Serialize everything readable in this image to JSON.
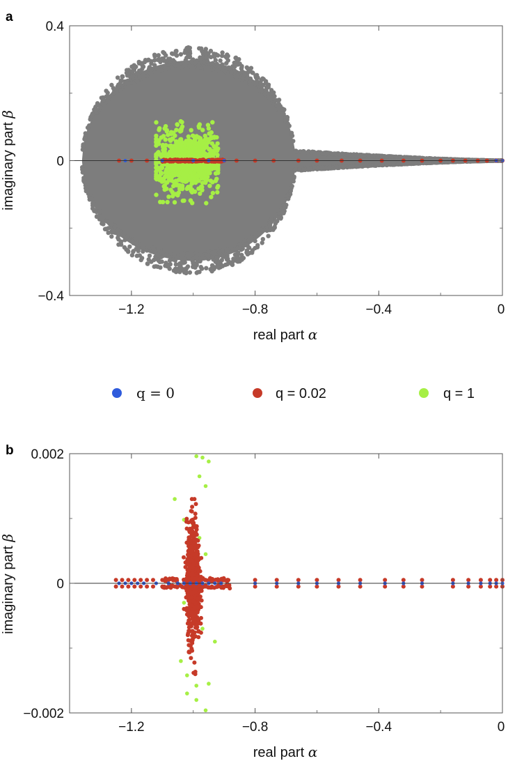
{
  "legend": [
    {
      "label": "q = 0",
      "color": "#2f5bdc"
    },
    {
      "label": "q = 0.02",
      "color": "#c63a28"
    },
    {
      "label": "q = 1",
      "color": "#a6ef45"
    }
  ],
  "background_color": "#7d7d7d",
  "chart_data": [
    {
      "type": "scatter",
      "panel": "a",
      "title": "",
      "xlabel": "real part",
      "xlabel_symbol": "α",
      "ylabel": "imaginary part",
      "ylabel_symbol": "β",
      "xlim": [
        -1.4,
        0
      ],
      "ylim": [
        -0.4,
        0.4
      ],
      "xticks": [
        -1.2,
        -0.8,
        -0.4,
        0
      ],
      "xtick_labels": [
        "−1.2",
        "−0.8",
        "−0.4",
        "0"
      ],
      "yticks": [
        0.4,
        0,
        -0.4
      ],
      "ytick_labels": [
        "0.4",
        "0",
        "−0.4"
      ],
      "grid": false,
      "zero_line": true,
      "series": [
        {
          "name": "background",
          "description": "dense cloud of eigenvalues",
          "cloud": {
            "x_min": -1.36,
            "x_center": -1.0,
            "x_max": 0,
            "beta_max_at_center": 0.32,
            "tail_beta_width": 0.05
          }
        },
        {
          "name": "q = 1",
          "cluster": {
            "x_min": -1.12,
            "x_max": -0.92,
            "beta_range": [
              -0.13,
              0.12
            ]
          }
        },
        {
          "name": "q = 0.02",
          "x": [
            -1.24,
            -1.2,
            -1.15,
            -1.1,
            -1.06,
            -1.02,
            -1.0,
            -0.98,
            -0.94,
            -0.9,
            -0.86,
            -0.8,
            -0.74,
            -0.66,
            -0.6,
            -0.52,
            -0.46,
            -0.39,
            -0.32,
            -0.26,
            -0.2,
            -0.16,
            -0.12,
            -0.08,
            -0.05,
            -0.02,
            0
          ],
          "y": [
            0,
            0,
            0,
            0,
            0,
            0,
            0,
            0,
            0,
            0,
            0,
            0,
            0,
            0,
            0,
            0,
            0,
            0,
            0,
            0,
            0,
            0,
            0,
            0,
            0,
            0,
            0
          ]
        },
        {
          "name": "q = 0",
          "x": [
            -1.22,
            -1.1,
            -1.0,
            -0.95,
            -0.9,
            -0.02,
            0
          ],
          "y": [
            0,
            0,
            0,
            0,
            0,
            0,
            0
          ]
        }
      ]
    },
    {
      "type": "scatter",
      "panel": "b",
      "title": "",
      "xlabel": "real part",
      "xlabel_symbol": "α",
      "ylabel": "imaginary part",
      "ylabel_symbol": "β",
      "xlim": [
        -1.4,
        0
      ],
      "ylim": [
        -0.002,
        0.002
      ],
      "xticks": [
        -1.2,
        -0.8,
        -0.4,
        0
      ],
      "xtick_labels": [
        "−1.2",
        "−0.8",
        "−0.4",
        "0"
      ],
      "yticks": [
        0.002,
        0,
        -0.002
      ],
      "ytick_labels": [
        "0.002",
        "0",
        "−0.002"
      ],
      "grid": false,
      "zero_line": true,
      "series": [
        {
          "name": "q = 0",
          "x": [
            -1.24,
            -1.22,
            -1.2,
            -1.18,
            -1.16,
            -1.12,
            -1.08,
            -1.05,
            -1.03,
            -1.01,
            -0.99,
            -0.97,
            -0.95,
            -0.93,
            -0.91,
            -0.8,
            -0.73,
            -0.66,
            -0.6,
            -0.53,
            -0.46,
            -0.38,
            -0.32,
            -0.26,
            -0.16,
            -0.11,
            -0.07,
            -0.04,
            -0.02,
            0
          ],
          "y": [
            0,
            0,
            0,
            0,
            0,
            0,
            0,
            0,
            0,
            0,
            0,
            0,
            0,
            0,
            0,
            0,
            0,
            0,
            0,
            0,
            0,
            0,
            0,
            0,
            0,
            0,
            0,
            0,
            0,
            0
          ]
        },
        {
          "name": "q = 0.02",
          "pairs_x": [
            -1.25,
            -1.23,
            -1.21,
            -1.19,
            -1.17,
            -1.15,
            -1.13,
            -1.1,
            -1.08,
            -1.06,
            -0.96,
            -0.94,
            -0.92,
            -0.9,
            -0.8,
            -0.73,
            -0.66,
            -0.6,
            -0.53,
            -0.46,
            -0.38,
            -0.32,
            -0.26,
            -0.16,
            -0.11,
            -0.07,
            -0.04,
            -0.02,
            0
          ],
          "pair_offset": 5e-05,
          "vertical_cluster": {
            "x_center": -1.0,
            "x_spread": 0.03,
            "beta_range": [
              -0.0014,
              0.0013
            ]
          }
        },
        {
          "name": "q = 1",
          "x": [
            -0.99,
            -0.97,
            -0.95,
            -0.98,
            -0.96,
            -1.06,
            -1.03,
            -1.0,
            -0.98,
            -0.96,
            -1.03,
            -1.0,
            -0.97,
            -0.93,
            -1.04,
            -1.02,
            -0.99,
            -0.95,
            -1.02,
            -0.99,
            -0.96
          ],
          "y": [
            0.00196,
            0.00194,
            0.00188,
            0.00165,
            0.0015,
            0.0013,
            0.00098,
            0.0009,
            0.0007,
            0.00045,
            -0.0003,
            -0.0005,
            -0.0007,
            -0.0009,
            -0.0012,
            -0.00142,
            -0.00158,
            -0.00155,
            -0.0017,
            -0.0018,
            -0.00196
          ]
        }
      ]
    }
  ]
}
